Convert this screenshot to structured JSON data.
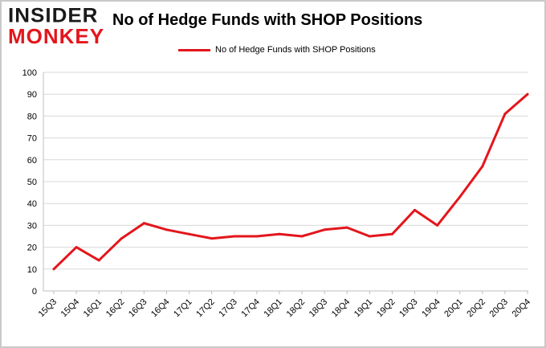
{
  "logo": {
    "line1": "INSIDER",
    "line2": "MONKEY"
  },
  "chart_data": {
    "type": "line",
    "title": "No of Hedge Funds with SHOP Positions",
    "xlabel": "",
    "ylabel": "",
    "ylim": [
      0,
      100
    ],
    "yticks": [
      0,
      10,
      20,
      30,
      40,
      50,
      60,
      70,
      80,
      90,
      100
    ],
    "grid": true,
    "legend_position": "top-center",
    "categories": [
      "15Q3",
      "15Q4",
      "16Q1",
      "16Q2",
      "16Q3",
      "16Q4",
      "17Q1",
      "17Q2",
      "17Q3",
      "17Q4",
      "18Q1",
      "18Q2",
      "18Q3",
      "18Q4",
      "19Q1",
      "19Q2",
      "19Q3",
      "19Q4",
      "20Q1",
      "20Q2",
      "20Q3",
      "20Q4"
    ],
    "series": [
      {
        "name": "No of Hedge Funds with SHOP Positions",
        "color": "#e3161c",
        "values": [
          10,
          20,
          14,
          24,
          31,
          28,
          26,
          24,
          25,
          25,
          26,
          25,
          28,
          29,
          25,
          26,
          37,
          30,
          43,
          57,
          81,
          90
        ]
      }
    ]
  }
}
